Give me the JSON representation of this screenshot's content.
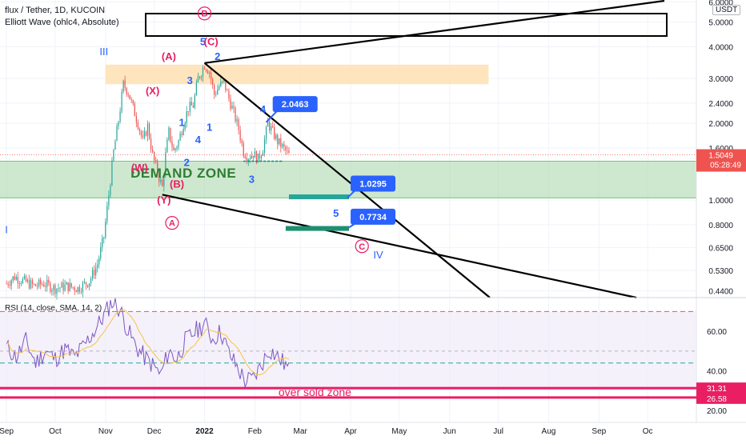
{
  "header": {
    "symbol_line": "flux / Tether, 1D, KUCOIN",
    "indicator_line": "Elliott Wave (ohlc4, Absolute)",
    "currency_badge": "USDT",
    "rsi_label": "RSI (14, close, SMA, 14, 2)"
  },
  "colors": {
    "up_candle": "#26a69a",
    "down_candle": "#ef5350",
    "callout": "#2962ff",
    "wave_blue": "#2962ff",
    "wave_red": "#e91e63",
    "demand_zone": "#a5d6a7",
    "supply_zone": "#ffe0b2",
    "rsi_line": "#7e57c2",
    "rsi_ma": "#f6c343",
    "oversold_line": "#e91e63"
  },
  "chart_data": [
    {
      "type": "candlestick",
      "title": "flux / Tether, 1D, KUCOIN",
      "y_scale": "log",
      "ylim": [
        0.42,
        6.1
      ],
      "xlim": [
        "2021-08-28",
        "2022-10-31"
      ],
      "y_ticks": [
        "6.0000",
        "5.0000",
        "4.0000",
        "3.0000",
        "2.4000",
        "2.0000",
        "1.6000",
        "1.0000",
        "0.8000",
        "0.6500",
        "0.5300",
        "0.4400"
      ],
      "x_tick_labels": [
        "Sep",
        "Oct",
        "Nov",
        "Dec",
        "2022",
        "Feb",
        "Mar",
        "Apr",
        "May",
        "Jun",
        "Jul",
        "Aug",
        "Sep",
        "Oc"
      ],
      "last_price": "1.5049",
      "countdown": "05:28:49",
      "close_path": [
        [
          "2021-09-01",
          0.47
        ],
        [
          "2021-09-06",
          0.5
        ],
        [
          "2021-09-12",
          0.48
        ],
        [
          "2021-09-18",
          0.46
        ],
        [
          "2021-09-24",
          0.47
        ],
        [
          "2021-10-01",
          0.45
        ],
        [
          "2021-10-08",
          0.46
        ],
        [
          "2021-10-15",
          0.45
        ],
        [
          "2021-10-22",
          0.48
        ],
        [
          "2021-10-27",
          0.56
        ],
        [
          "2021-10-31",
          0.72
        ],
        [
          "2021-11-03",
          1.05
        ],
        [
          "2021-11-06",
          1.55
        ],
        [
          "2021-11-09",
          2.05
        ],
        [
          "2021-11-12",
          2.85
        ],
        [
          "2021-11-15",
          2.65
        ],
        [
          "2021-11-18",
          2.3
        ],
        [
          "2021-11-21",
          2.0
        ],
        [
          "2021-11-24",
          1.7
        ],
        [
          "2021-11-27",
          1.95
        ],
        [
          "2021-11-30",
          1.5
        ],
        [
          "2021-12-03",
          1.28
        ],
        [
          "2021-12-06",
          1.12
        ],
        [
          "2021-12-08",
          1.5
        ],
        [
          "2021-12-10",
          1.85
        ],
        [
          "2021-12-13",
          1.55
        ],
        [
          "2021-12-16",
          1.7
        ],
        [
          "2021-12-19",
          2.0
        ],
        [
          "2021-12-22",
          2.3
        ],
        [
          "2021-12-25",
          2.35
        ],
        [
          "2021-12-28",
          3.0
        ],
        [
          "2022-01-01",
          3.4
        ],
        [
          "2022-01-04",
          3.2
        ],
        [
          "2022-01-07",
          2.6
        ],
        [
          "2022-01-10",
          2.8
        ],
        [
          "2022-01-13",
          2.9
        ],
        [
          "2022-01-16",
          2.5
        ],
        [
          "2022-01-19",
          2.2
        ],
        [
          "2022-01-22",
          1.9
        ],
        [
          "2022-01-25",
          1.55
        ],
        [
          "2022-01-28",
          1.48
        ],
        [
          "2022-01-31",
          1.52
        ],
        [
          "2022-02-03",
          1.45
        ],
        [
          "2022-02-06",
          1.6
        ],
        [
          "2022-02-09",
          2.0
        ],
        [
          "2022-02-12",
          1.85
        ],
        [
          "2022-02-15",
          1.7
        ],
        [
          "2022-02-18",
          1.62
        ],
        [
          "2022-02-22",
          1.5
        ]
      ],
      "wave_labels": [
        {
          "text": "III",
          "color": "blue",
          "date": "2021-10-31",
          "price": 3.7
        },
        {
          "text": "I",
          "color": "blue",
          "date": "2021-09-01",
          "price": 0.74
        },
        {
          "text": "(A)",
          "color": "red",
          "date": "2021-12-10",
          "price": 3.55
        },
        {
          "text": "(X)",
          "color": "red",
          "date": "2021-11-30",
          "price": 2.6
        },
        {
          "text": "(W)",
          "color": "red",
          "date": "2021-11-22",
          "price": 1.3
        },
        {
          "text": "(B)",
          "color": "red",
          "date": "2021-12-15",
          "price": 1.12
        },
        {
          "text": "(Y)",
          "color": "red",
          "date": "2021-12-07",
          "price": 0.97
        },
        {
          "text": "A",
          "color": "red",
          "circled": true,
          "date": "2021-12-12",
          "price": 0.79
        },
        {
          "text": "B",
          "color": "red",
          "circled": true,
          "date": "2022-01-01",
          "price": 5.25
        },
        {
          "text": "5",
          "color": "blue",
          "date": "2021-12-31",
          "price": 4.05
        },
        {
          "text": "(C)",
          "color": "red",
          "date": "2022-01-05",
          "price": 4.05
        },
        {
          "text": "2",
          "color": "blue",
          "date": "2022-01-09",
          "price": 3.55
        },
        {
          "text": "3",
          "color": "blue",
          "date": "2021-12-23",
          "price": 2.85
        },
        {
          "text": "1",
          "color": "blue",
          "date": "2021-12-18",
          "price": 1.95
        },
        {
          "text": "4",
          "color": "blue",
          "date": "2021-12-28",
          "price": 1.67
        },
        {
          "text": "2",
          "color": "blue",
          "date": "2021-12-21",
          "price": 1.36
        },
        {
          "text": "1",
          "color": "blue",
          "date": "2022-01-04",
          "price": 1.87
        },
        {
          "text": "4",
          "color": "blue",
          "date": "2022-02-06",
          "price": 2.2
        },
        {
          "text": "3",
          "color": "blue",
          "date": "2022-01-30",
          "price": 1.17
        },
        {
          "text": "5",
          "color": "blue",
          "date": "2022-03-23",
          "price": 0.86
        },
        {
          "text": "C",
          "color": "red",
          "circled": true,
          "date": "2022-04-08",
          "price": 0.64
        },
        {
          "text": "IV",
          "color": "blue",
          "date": "2022-04-18",
          "price": 0.59
        }
      ],
      "price_callouts": [
        "2.0463",
        "1.0295",
        "0.7734"
      ],
      "zone_label": "DEMAND ZONE"
    },
    {
      "type": "line",
      "title": "RSI (14, close, SMA, 14, 2)",
      "ylim": [
        14,
        77
      ],
      "y_ticks": [
        "60.00",
        "40.00",
        "20.00"
      ],
      "series_note": "RSI with SMA",
      "levels": [
        "31.31",
        "26.58"
      ],
      "annotation": "over sold zone",
      "rsi": [
        [
          "2021-09-01",
          52
        ],
        [
          "2021-09-07",
          47
        ],
        [
          "2021-09-13",
          55
        ],
        [
          "2021-09-19",
          44
        ],
        [
          "2021-09-25",
          50
        ],
        [
          "2021-10-01",
          46
        ],
        [
          "2021-10-07",
          51
        ],
        [
          "2021-10-13",
          47
        ],
        [
          "2021-10-19",
          53
        ],
        [
          "2021-10-25",
          60
        ],
        [
          "2021-10-31",
          68
        ],
        [
          "2021-11-05",
          75
        ],
        [
          "2021-11-10",
          71
        ],
        [
          "2021-11-15",
          60
        ],
        [
          "2021-11-20",
          52
        ],
        [
          "2021-11-25",
          47
        ],
        [
          "2021-11-30",
          43
        ],
        [
          "2021-12-05",
          38
        ],
        [
          "2021-12-10",
          50
        ],
        [
          "2021-12-15",
          46
        ],
        [
          "2021-12-20",
          55
        ],
        [
          "2021-12-25",
          59
        ],
        [
          "2022-01-01",
          64
        ],
        [
          "2022-01-06",
          56
        ],
        [
          "2022-01-11",
          60
        ],
        [
          "2022-01-16",
          49
        ],
        [
          "2022-01-21",
          42
        ],
        [
          "2022-01-26",
          35
        ],
        [
          "2022-01-31",
          36
        ],
        [
          "2022-02-05",
          43
        ],
        [
          "2022-02-10",
          51
        ],
        [
          "2022-02-15",
          47
        ],
        [
          "2022-02-20",
          43
        ],
        [
          "2022-02-22",
          40
        ]
      ]
    }
  ]
}
